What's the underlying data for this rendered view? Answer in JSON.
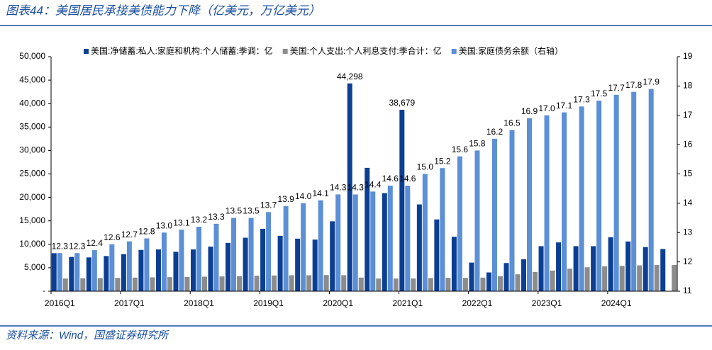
{
  "chart_data": {
    "type": "bar",
    "title": "图表44：美国居民承接美债能力下降（亿美元，万亿美元）",
    "source": "资料来源：Wind，国盛证券研究所",
    "categories": [
      "2016Q1",
      null,
      null,
      null,
      "2017Q1",
      null,
      null,
      null,
      "2018Q1",
      null,
      null,
      null,
      "2019Q1",
      null,
      null,
      null,
      "2020Q1",
      null,
      null,
      null,
      "2021Q1",
      null,
      null,
      null,
      "2022Q1",
      null,
      null,
      null,
      "2023Q1",
      null,
      null,
      null,
      "2024Q1",
      null,
      null,
      null
    ],
    "series": [
      {
        "name": "美国:净储蓄:私人:家庭和机构:个人储蓄:季调：亿",
        "color": "#0b3f94",
        "values": [
          8100,
          7300,
          7200,
          7500,
          7900,
          8800,
          8900,
          8400,
          8900,
          9500,
          10300,
          11400,
          13300,
          11800,
          11200,
          11000,
          14900,
          44298,
          26300,
          20900,
          38679,
          18500,
          15300,
          11600,
          6100,
          4000,
          6000,
          6800,
          9600,
          10400,
          9600,
          9600,
          11500,
          10600,
          9400,
          9000
        ],
        "value_labels": [
          null,
          null,
          null,
          null,
          null,
          null,
          null,
          null,
          null,
          null,
          null,
          null,
          null,
          null,
          null,
          null,
          null,
          "44,298",
          null,
          null,
          "38,679",
          null,
          null,
          null,
          null,
          null,
          null,
          null,
          null,
          null,
          null,
          null,
          null,
          null,
          null,
          null
        ]
      },
      {
        "name": "美国:个人支出:个人利息支付:季合计：亿",
        "color": "#8c8c8c",
        "values": [
          2700,
          2750,
          2800,
          2850,
          2900,
          2950,
          3000,
          3050,
          3100,
          3150,
          3200,
          3300,
          3350,
          3400,
          3400,
          3450,
          3400,
          2900,
          2700,
          2700,
          2700,
          2800,
          2850,
          2850,
          2900,
          3200,
          3600,
          4100,
          4400,
          4800,
          5100,
          5300,
          5400,
          5500,
          5600,
          5600
        ]
      },
      {
        "name": "美国:家庭债务余额（右轴）",
        "color": "#5b8fd6",
        "axis": "y2",
        "values": [
          12.3,
          12.3,
          12.4,
          12.6,
          12.7,
          12.8,
          13.0,
          13.1,
          13.2,
          13.3,
          13.5,
          13.5,
          13.7,
          13.9,
          14.0,
          14.1,
          14.3,
          14.3,
          14.4,
          14.6,
          14.6,
          15.0,
          15.2,
          15.6,
          15.8,
          16.2,
          16.5,
          16.9,
          17.0,
          17.1,
          17.3,
          17.5,
          17.7,
          17.8,
          17.9,
          null
        ],
        "value_labels": [
          "12.3",
          "12.3",
          "12.4",
          "12.6",
          "12.7",
          "12.8",
          "13.0",
          "13.1",
          "13.2",
          "13.3",
          "13.5",
          "13.5",
          "13.7",
          "13.9",
          "14.0",
          "14.1",
          "14.3",
          "14.3",
          "14.4",
          "14.6",
          "14.6",
          "15.0",
          "15.2",
          "15.6",
          "15.8",
          "16.2",
          "16.5",
          "16.9",
          "17.0",
          "17.1",
          "17.3",
          "17.5",
          "17.7",
          "17.8",
          "17.9",
          null
        ]
      }
    ],
    "ylim": [
      0,
      50000
    ],
    "yticks": [
      {
        "value": 0,
        "label": "-"
      },
      {
        "value": 5000,
        "label": "5,000"
      },
      {
        "value": 10000,
        "label": "10,000"
      },
      {
        "value": 15000,
        "label": "15,000"
      },
      {
        "value": 20000,
        "label": "20,000"
      },
      {
        "value": 25000,
        "label": "25,000"
      },
      {
        "value": 30000,
        "label": "30,000"
      },
      {
        "value": 35000,
        "label": "35,000"
      },
      {
        "value": 40000,
        "label": "40,000"
      },
      {
        "value": 45000,
        "label": "45,000"
      },
      {
        "value": 50000,
        "label": "50,000"
      }
    ],
    "y2lim": [
      11,
      19
    ],
    "y2ticks": [
      11,
      12,
      13,
      14,
      15,
      16,
      17,
      18,
      19
    ],
    "legend": "top"
  }
}
